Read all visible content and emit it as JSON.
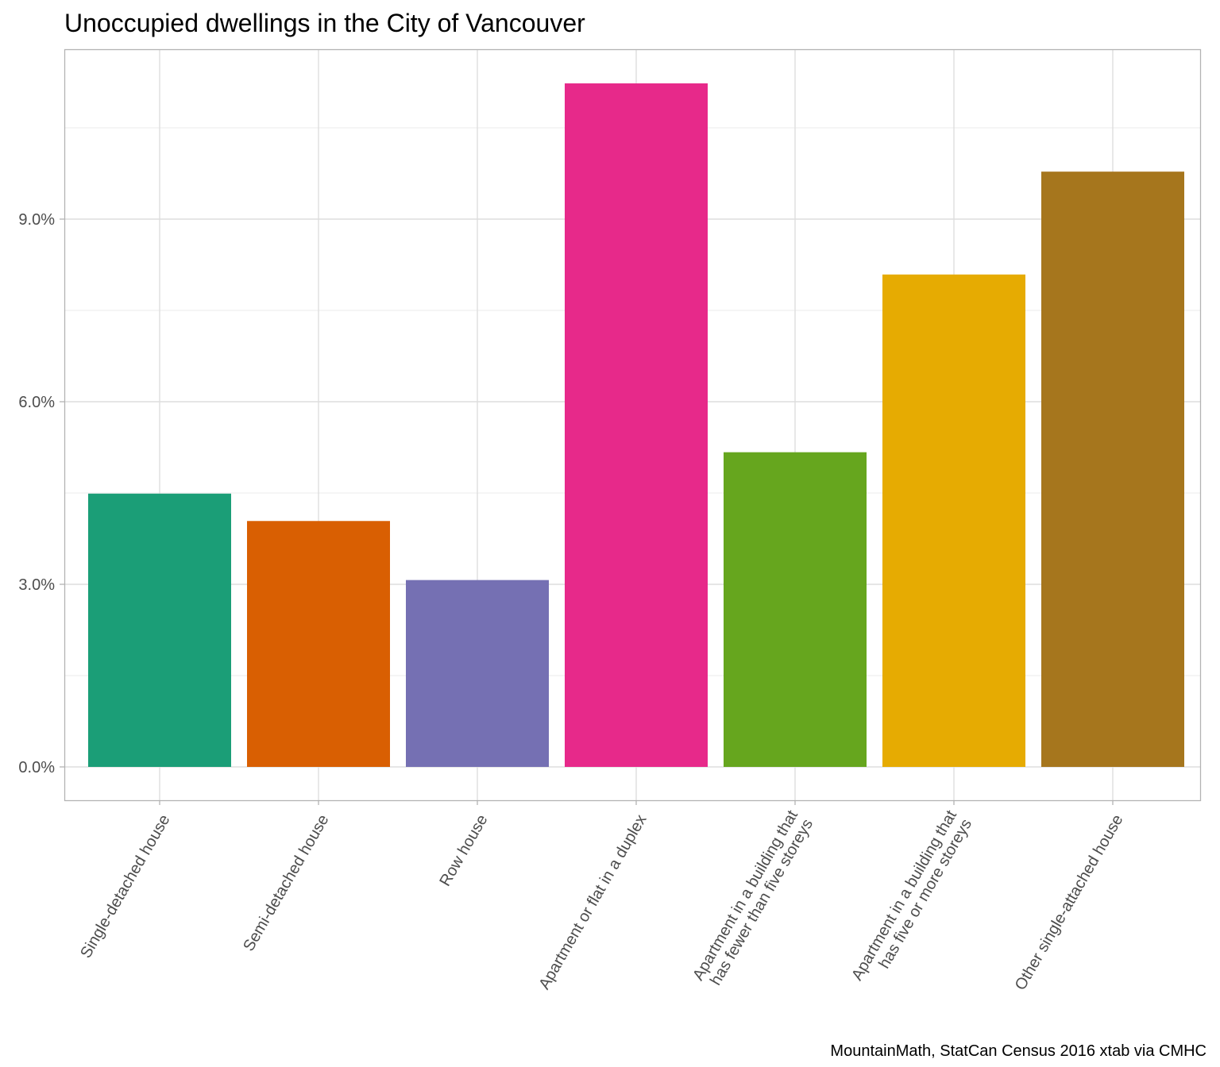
{
  "chart_data": {
    "type": "bar",
    "title": "Unoccupied dwellings in the City of Vancouver",
    "caption": "MountainMath, StatCan Census 2016 xtab via CMHC",
    "xlabel": "",
    "ylabel": "",
    "categories": [
      [
        "Single-detached house"
      ],
      [
        "Semi-detached house"
      ],
      [
        "Row house"
      ],
      [
        "Apartment or flat in a duplex"
      ],
      [
        "Apartment in a building that",
        "has fewer than five storeys"
      ],
      [
        "Apartment in a building that",
        "has five or more storeys"
      ],
      [
        "Other single-attached house"
      ]
    ],
    "values": [
      4.49,
      4.04,
      3.07,
      11.23,
      5.17,
      8.09,
      9.78
    ],
    "value_unit": "percent",
    "colors": [
      "#1b9e77",
      "#d95f02",
      "#7570b3",
      "#e7298a",
      "#66a61e",
      "#e6ab02",
      "#a6761d"
    ],
    "ylim": [
      -0.56,
      11.79
    ],
    "yticks": [
      0,
      3,
      6,
      9
    ],
    "ytick_labels": [
      "0.0%",
      "3.0%",
      "6.0%",
      "9.0%"
    ],
    "grid": true,
    "legend": "none"
  }
}
